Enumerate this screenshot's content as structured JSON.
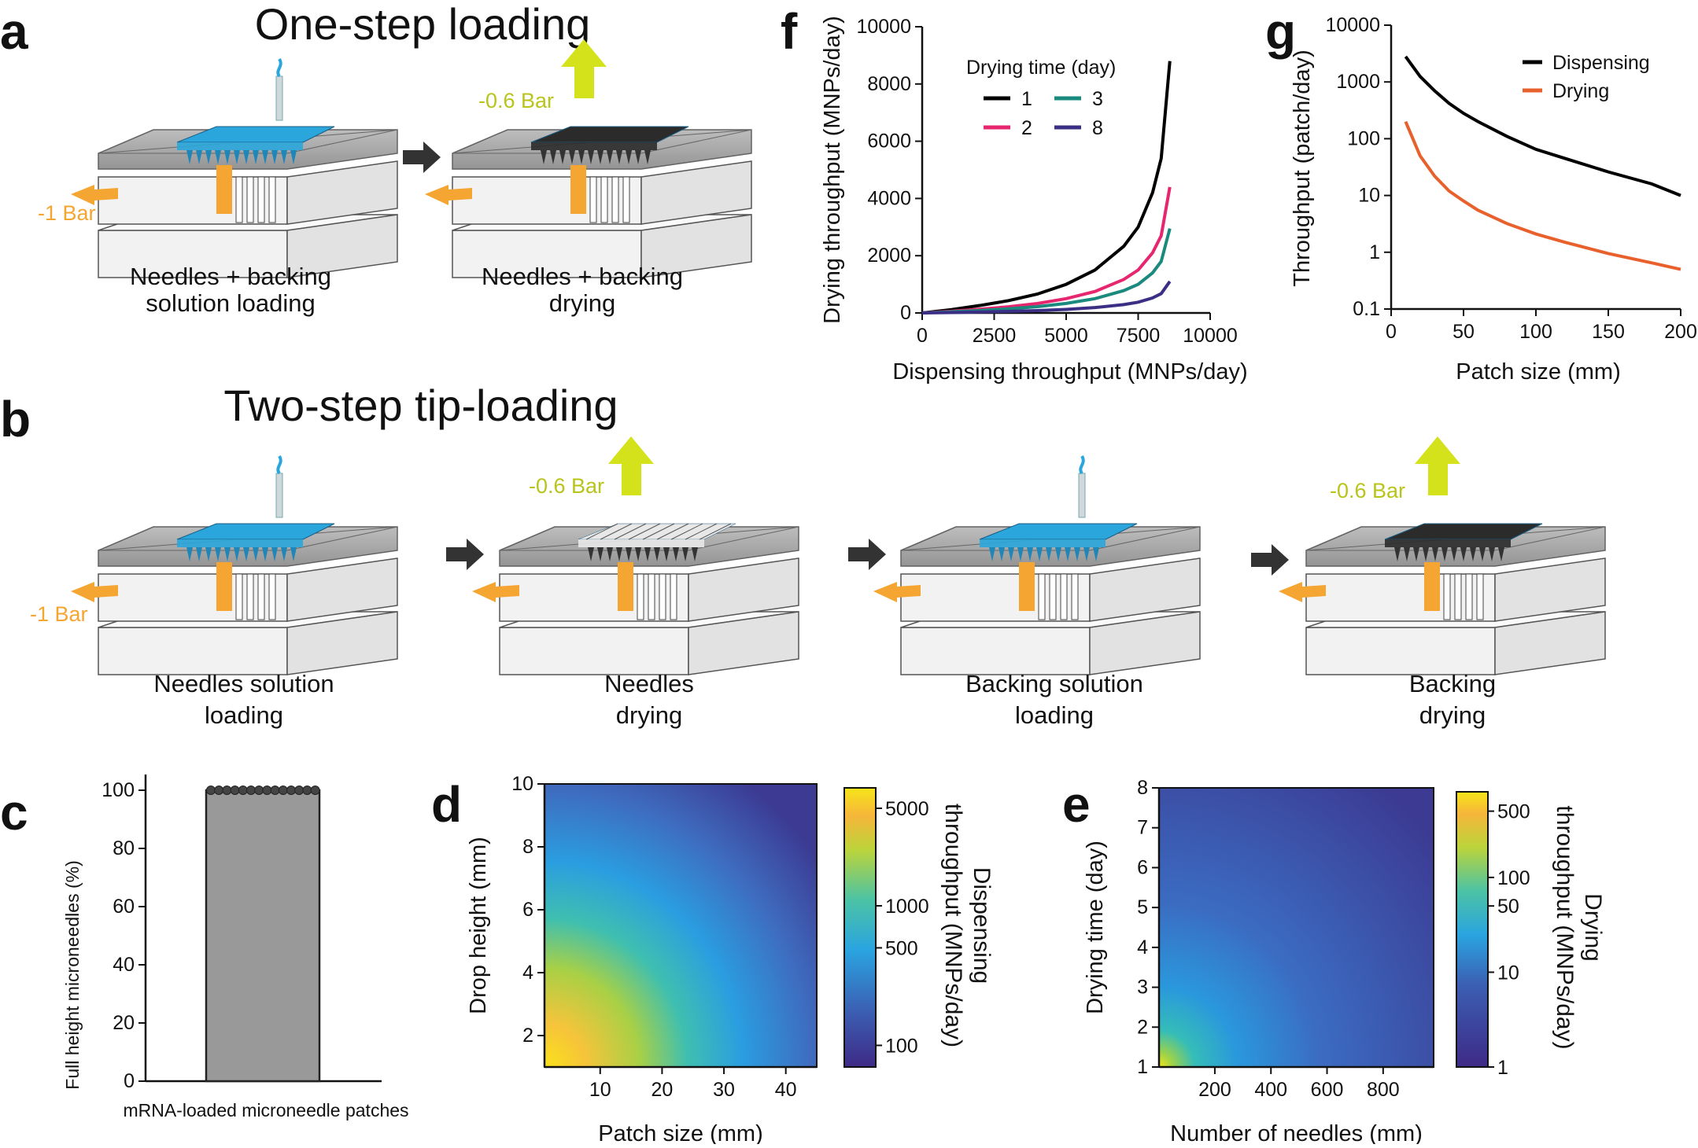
{
  "figure": {
    "panel_letters": [
      "a",
      "b",
      "c",
      "d",
      "e",
      "f",
      "g"
    ],
    "section_a": {
      "title": "One-step loading",
      "steps": [
        {
          "caption": [
            "Needles + backing",
            "solution loading"
          ],
          "pressure": "-1 Bar"
        },
        {
          "caption": [
            "Needles + backing",
            "drying"
          ],
          "pressure": "-0.6 Bar"
        }
      ]
    },
    "section_b": {
      "title": "Two-step tip-loading",
      "steps": [
        {
          "caption": [
            "Needles solution",
            "loading"
          ],
          "pressure": "-1 Bar"
        },
        {
          "caption": [
            "Needles",
            "drying"
          ],
          "pressure": "-0.6 Bar"
        },
        {
          "caption": [
            "Backing solution",
            "loading"
          ],
          "pressure": ""
        },
        {
          "caption": [
            "Backing",
            "drying"
          ],
          "pressure": "-0.6 Bar"
        }
      ]
    },
    "colors": {
      "device_gray": "#9a9a9a",
      "block_white": "#f2f2f2",
      "solution_blue": "#2aa6dc",
      "dried_black": "#2b2b2b",
      "vacuum_orange": "#f5a531",
      "vacuum_lime": "#d4e21c",
      "arrow_dark": "#333333"
    }
  },
  "chart_data": [
    {
      "id": "c",
      "type": "bar",
      "categories": [
        "mRNA-loaded microneedle patches"
      ],
      "values": [
        100
      ],
      "points": [
        100,
        100,
        100,
        100,
        100,
        100,
        100,
        100,
        100,
        100,
        100,
        100,
        100,
        100
      ],
      "ylabel": "Full height microneedles (%)",
      "xlabel": "mRNA-loaded microneedle patches",
      "ylim": [
        0,
        100
      ],
      "yticks": [
        0,
        20,
        40,
        60,
        80,
        100
      ],
      "bar_color": "#999999"
    },
    {
      "id": "d",
      "type": "heatmap",
      "xlabel": "Patch size (mm)",
      "ylabel": "Drop height (mm)",
      "xlim": [
        1,
        45
      ],
      "ylim": [
        1,
        10
      ],
      "xticks": [
        10,
        20,
        30,
        40
      ],
      "yticks": [
        2,
        4,
        6,
        8,
        10
      ],
      "colorbar": {
        "label": [
          "Dispensing",
          "throughput (MNPs/day)"
        ],
        "ticks": [
          5000,
          1000,
          500,
          100
        ],
        "tick_labels": [
          "5000",
          "1000",
          "500",
          "100"
        ],
        "range": [
          70,
          7000
        ],
        "scale": "log"
      }
    },
    {
      "id": "e",
      "type": "heatmap",
      "xlabel": "Number of needles (mm)",
      "ylabel": "Drying time (day)",
      "xlim": [
        1,
        980
      ],
      "ylim": [
        1,
        8
      ],
      "xticks": [
        200,
        400,
        600,
        800
      ],
      "yticks": [
        1,
        2,
        3,
        4,
        5,
        6,
        7,
        8
      ],
      "colorbar": {
        "label": [
          "Drying",
          "throughput (MNPs/day)"
        ],
        "ticks": [
          500,
          100,
          50,
          10,
          1
        ],
        "tick_labels": [
          "500",
          "100",
          "50",
          "10",
          "1"
        ],
        "range": [
          1,
          800
        ],
        "scale": "log"
      }
    },
    {
      "id": "f",
      "type": "line",
      "xlabel": "Dispensing throughput (MNPs/day)",
      "ylabel": "Drying throughput (MNPs/day)",
      "xlim": [
        0,
        10000
      ],
      "ylim": [
        0,
        10000
      ],
      "xticks": [
        0,
        2500,
        5000,
        7500,
        10000
      ],
      "yticks": [
        0,
        2000,
        4000,
        6000,
        8000,
        10000
      ],
      "legend_title": "Drying time (day)",
      "series": [
        {
          "name": "1",
          "color": "#000000",
          "x": [
            0,
            1000,
            2000,
            3000,
            4000,
            5000,
            6000,
            7000,
            7500,
            8000,
            8300,
            8600
          ],
          "y": [
            0,
            115,
            260,
            430,
            660,
            1000,
            1500,
            2330,
            3000,
            4200,
            5400,
            8800
          ]
        },
        {
          "name": "2",
          "color": "#e6266f",
          "x": [
            0,
            1000,
            2000,
            3000,
            4000,
            5000,
            6000,
            7000,
            7500,
            8000,
            8300,
            8600
          ],
          "y": [
            0,
            60,
            130,
            215,
            330,
            500,
            750,
            1170,
            1500,
            2100,
            2700,
            4400
          ]
        },
        {
          "name": "3",
          "color": "#1a8a7e",
          "x": [
            0,
            1000,
            2000,
            3000,
            4000,
            5000,
            6000,
            7000,
            7500,
            8000,
            8300,
            8600
          ],
          "y": [
            0,
            40,
            87,
            143,
            220,
            333,
            500,
            780,
            1000,
            1400,
            1800,
            2950
          ]
        },
        {
          "name": "8",
          "color": "#3b2f85",
          "x": [
            0,
            1000,
            2000,
            3000,
            4000,
            5000,
            6000,
            7000,
            7500,
            8000,
            8300,
            8600
          ],
          "y": [
            0,
            15,
            33,
            54,
            83,
            125,
            188,
            292,
            375,
            525,
            675,
            1100
          ]
        }
      ]
    },
    {
      "id": "g",
      "type": "line",
      "xlabel": "Patch size (mm)",
      "ylabel": "Throughput (patch/day)",
      "xlim": [
        0,
        200
      ],
      "ylim": [
        0.1,
        10000
      ],
      "yscale": "log",
      "xticks": [
        0,
        50,
        100,
        150,
        200
      ],
      "yticks": [
        0.1,
        1,
        10,
        100,
        1000,
        10000
      ],
      "ytick_labels": [
        "0.1",
        "1",
        "10",
        "100",
        "1000",
        "10000"
      ],
      "series": [
        {
          "name": "Dispensing",
          "color": "#000000",
          "x": [
            10,
            20,
            30,
            40,
            50,
            60,
            80,
            100,
            120,
            150,
            180,
            200
          ],
          "y": [
            2800,
            1250,
            700,
            420,
            280,
            200,
            110,
            65,
            45,
            26,
            16,
            10
          ]
        },
        {
          "name": "Drying",
          "color": "#e8612d",
          "x": [
            10,
            20,
            30,
            40,
            50,
            60,
            80,
            100,
            120,
            150,
            180,
            200
          ],
          "y": [
            200,
            50,
            22,
            12,
            8,
            5.5,
            3.2,
            2.1,
            1.5,
            0.95,
            0.65,
            0.5
          ]
        }
      ]
    }
  ]
}
